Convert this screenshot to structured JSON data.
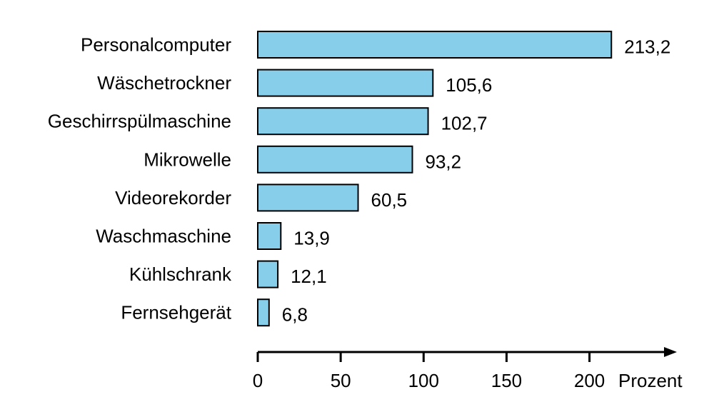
{
  "chart_data": {
    "type": "bar",
    "orientation": "horizontal",
    "categories": [
      "Personalcomputer",
      "Wäschetrockner",
      "Geschirrspülmaschine",
      "Mikrowelle",
      "Videorekorder",
      "Waschmaschine",
      "Kühlschrank",
      "Fernsehgerät"
    ],
    "values": [
      213.2,
      105.6,
      102.7,
      93.2,
      60.5,
      13.9,
      12.1,
      6.8
    ],
    "value_labels": [
      "213,2",
      "105,6",
      "102,7",
      "93,2",
      "60,5",
      "13,9",
      "12,1",
      "6,8"
    ],
    "x_ticks": [
      0,
      50,
      100,
      150,
      200
    ],
    "x_tick_labels": [
      "0",
      "50",
      "100",
      "150",
      "200"
    ],
    "xlim": [
      0,
      250
    ],
    "x_unit_label": "Prozent",
    "grid": false,
    "bar_color": "#87CEEB",
    "bar_edge_color": "#000000"
  }
}
